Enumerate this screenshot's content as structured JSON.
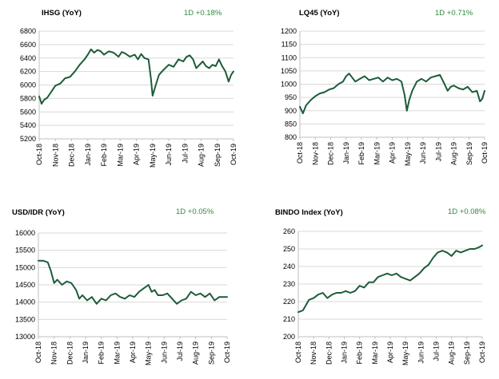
{
  "chart_data": [
    {
      "type": "line",
      "title": "IHSG (YoY)",
      "annotation": "1D +0.18%",
      "ylim": [
        5200,
        6800
      ],
      "yticks": [
        5200,
        5400,
        5600,
        5800,
        6000,
        6200,
        6400,
        6600,
        6800
      ],
      "ytick_labels": [
        "5200",
        "5400",
        "5600",
        "5800",
        "6000",
        "6200",
        "6400",
        "6600",
        "6800"
      ],
      "xtick_labels": [
        "Oct-18",
        "Nov-18",
        "Dec-18",
        "Jan-19",
        "Feb-19",
        "Mar-19",
        "Apr-19",
        "May-19",
        "Jun-19",
        "Jul-19",
        "Aug-19",
        "Sep-19",
        "Oct-19"
      ],
      "grid": true,
      "series": [
        {
          "x": [
            0,
            0.15,
            0.3,
            0.5,
            0.75,
            1.0,
            1.3,
            1.6,
            1.9,
            2.2,
            2.5,
            2.8,
            3.0,
            3.2,
            3.4,
            3.6,
            3.8,
            4.0,
            4.3,
            4.6,
            4.9,
            5.1,
            5.3,
            5.6,
            5.9,
            6.1,
            6.3,
            6.5,
            6.75,
            6.9,
            7.0,
            7.2,
            7.4,
            7.7,
            8.0,
            8.3,
            8.6,
            8.9,
            9.1,
            9.3,
            9.5,
            9.7,
            9.9,
            10.1,
            10.3,
            10.5,
            10.7,
            10.9,
            11.1,
            11.3,
            11.5,
            11.7,
            11.85,
            12.0
          ],
          "y": [
            5830,
            5720,
            5780,
            5810,
            5900,
            5990,
            6020,
            6100,
            6120,
            6200,
            6300,
            6380,
            6450,
            6530,
            6480,
            6520,
            6500,
            6450,
            6500,
            6480,
            6420,
            6490,
            6470,
            6420,
            6450,
            6380,
            6460,
            6400,
            6380,
            6100,
            5840,
            6000,
            6150,
            6230,
            6300,
            6270,
            6380,
            6350,
            6420,
            6440,
            6380,
            6250,
            6300,
            6350,
            6280,
            6250,
            6300,
            6280,
            6380,
            6280,
            6200,
            6050,
            6150,
            6200
          ]
        }
      ]
    },
    {
      "type": "line",
      "title": "LQ45 (YoY)",
      "annotation": "1D +0.71%",
      "ylim": [
        800,
        1200
      ],
      "yticks": [
        800,
        850,
        900,
        950,
        1000,
        1050,
        1100,
        1150,
        1200
      ],
      "ytick_labels": [
        "800",
        "850",
        "900",
        "950",
        "1000",
        "1050",
        "1100",
        "1150",
        "1200"
      ],
      "xtick_labels": [
        "Oct-18",
        "Nov-18",
        "Dec-18",
        "Jan-19",
        "Feb-19",
        "Mar-19",
        "Apr-19",
        "May-19",
        "Jun-19",
        "Jul-19",
        "Aug-19",
        "Sep-19",
        "Oct-19"
      ],
      "grid": true,
      "series": [
        {
          "x": [
            0,
            0.2,
            0.4,
            0.7,
            1.0,
            1.3,
            1.6,
            1.9,
            2.2,
            2.5,
            2.8,
            3.0,
            3.2,
            3.4,
            3.6,
            3.9,
            4.2,
            4.5,
            4.8,
            5.1,
            5.4,
            5.7,
            6.0,
            6.3,
            6.6,
            6.8,
            6.95,
            7.1,
            7.3,
            7.6,
            7.9,
            8.2,
            8.5,
            8.8,
            9.1,
            9.4,
            9.6,
            9.8,
            10.0,
            10.3,
            10.6,
            10.9,
            11.2,
            11.5,
            11.7,
            11.85,
            12.0
          ],
          "y": [
            915,
            890,
            920,
            940,
            955,
            965,
            970,
            980,
            985,
            1000,
            1010,
            1030,
            1040,
            1025,
            1010,
            1020,
            1030,
            1015,
            1020,
            1025,
            1010,
            1025,
            1015,
            1020,
            1010,
            960,
            900,
            940,
            975,
            1010,
            1020,
            1010,
            1025,
            1030,
            1035,
            1000,
            975,
            990,
            995,
            985,
            980,
            990,
            970,
            975,
            935,
            945,
            975
          ]
        }
      ]
    },
    {
      "type": "line",
      "title": "USD/IDR  (YoY)",
      "annotation": "1D +0.05%",
      "ylim": [
        13000,
        16000
      ],
      "yticks": [
        13000,
        13500,
        14000,
        14500,
        15000,
        15500,
        16000
      ],
      "ytick_labels": [
        "13000",
        "13500",
        "14000",
        "14500",
        "15000",
        "15500",
        "16000"
      ],
      "xtick_labels": [
        "Oct-18",
        "Nov-18",
        "Dec-18",
        "Jan-19",
        "Feb-19",
        "Mar-19",
        "Apr-19",
        "May-19",
        "Jun-19",
        "Jul-19",
        "Aug-19",
        "Sep-19",
        "Oct-19"
      ],
      "grid": true,
      "series": [
        {
          "x": [
            0,
            0.3,
            0.6,
            0.8,
            1.0,
            1.2,
            1.5,
            1.8,
            2.1,
            2.4,
            2.6,
            2.8,
            3.1,
            3.4,
            3.7,
            4.0,
            4.3,
            4.6,
            4.9,
            5.2,
            5.5,
            5.8,
            6.1,
            6.4,
            6.7,
            7.0,
            7.2,
            7.4,
            7.6,
            7.9,
            8.2,
            8.5,
            8.8,
            9.1,
            9.4,
            9.7,
            10.0,
            10.3,
            10.6,
            10.9,
            11.2,
            11.5,
            11.8,
            12.0
          ],
          "y": [
            15200,
            15200,
            15150,
            14900,
            14550,
            14650,
            14500,
            14600,
            14550,
            14350,
            14100,
            14200,
            14050,
            14150,
            13950,
            14100,
            14050,
            14200,
            14250,
            14150,
            14100,
            14200,
            14150,
            14300,
            14400,
            14500,
            14300,
            14350,
            14200,
            14200,
            14250,
            14100,
            13950,
            14050,
            14100,
            14300,
            14200,
            14250,
            14150,
            14250,
            14050,
            14150,
            14150,
            14150
          ]
        }
      ]
    },
    {
      "type": "line",
      "title": "BINDO Index (YoY)",
      "annotation": "1D +0.08%",
      "ylim": [
        200,
        260
      ],
      "yticks": [
        200,
        210,
        220,
        230,
        240,
        250,
        260
      ],
      "ytick_labels": [
        "200",
        "210",
        "220",
        "230",
        "240",
        "250",
        "260"
      ],
      "xtick_labels": [
        "Oct-18",
        "Nov-18",
        "Dec-18",
        "Jan-19",
        "Feb-19",
        "Mar-19",
        "Apr-19",
        "May-19",
        "Jun-19",
        "Jul-19",
        "Aug-19",
        "Sep-19",
        "Oct-19"
      ],
      "grid": true,
      "series": [
        {
          "x": [
            0,
            0.3,
            0.5,
            0.7,
            1.0,
            1.3,
            1.6,
            1.9,
            2.2,
            2.5,
            2.8,
            3.1,
            3.4,
            3.7,
            4.0,
            4.3,
            4.6,
            4.9,
            5.2,
            5.5,
            5.8,
            6.1,
            6.4,
            6.7,
            7.0,
            7.3,
            7.6,
            7.9,
            8.2,
            8.5,
            8.8,
            9.1,
            9.4,
            9.7,
            10.0,
            10.3,
            10.6,
            10.9,
            11.2,
            11.5,
            11.8,
            12.0
          ],
          "y": [
            214,
            215,
            218,
            221,
            222,
            224,
            225,
            222,
            224,
            225,
            225,
            226,
            225,
            226,
            229,
            228,
            231,
            231,
            234,
            235,
            236,
            235,
            236,
            234,
            233,
            232,
            234,
            236,
            239,
            241,
            245,
            248,
            249,
            248,
            246,
            249,
            248,
            249,
            250,
            250,
            251,
            252
          ]
        }
      ]
    }
  ]
}
